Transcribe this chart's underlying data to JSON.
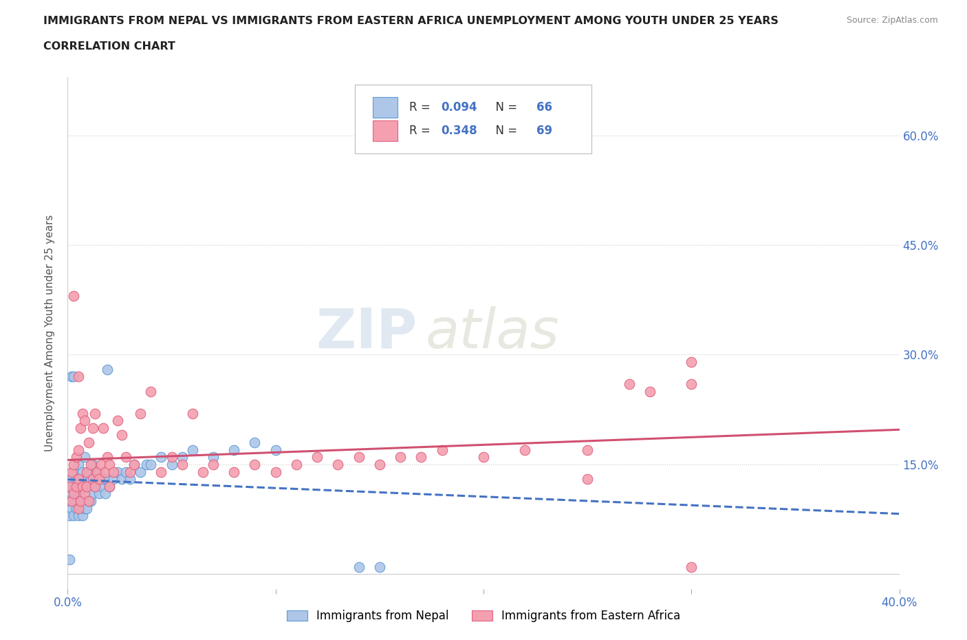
{
  "title_line1": "IMMIGRANTS FROM NEPAL VS IMMIGRANTS FROM EASTERN AFRICA UNEMPLOYMENT AMONG YOUTH UNDER 25 YEARS",
  "title_line2": "CORRELATION CHART",
  "source_text": "Source: ZipAtlas.com",
  "ylabel": "Unemployment Among Youth under 25 years",
  "xlim": [
    0.0,
    0.4
  ],
  "ylim": [
    -0.02,
    0.68
  ],
  "xtick_pos": [
    0.0,
    0.1,
    0.2,
    0.3,
    0.4
  ],
  "xtick_labels": [
    "0.0%",
    "",
    "",
    "",
    "40.0%"
  ],
  "ytick_positions": [
    0.0,
    0.15,
    0.3,
    0.45,
    0.6
  ],
  "ytick_labels": [
    "",
    "15.0%",
    "30.0%",
    "45.0%",
    "60.0%"
  ],
  "nepal_color": "#aec6e8",
  "nepal_edge_color": "#5b9bd5",
  "eastern_africa_color": "#f4a0b0",
  "eastern_africa_edge_color": "#e06080",
  "nepal_R": 0.094,
  "nepal_N": 66,
  "eastern_africa_R": 0.348,
  "eastern_africa_N": 69,
  "nepal_trend_color": "#4472c4",
  "eastern_africa_trend_color": "#d05070",
  "watermark_zip": "ZIP",
  "watermark_atlas": "atlas",
  "background_color": "#ffffff",
  "nepal_x": [
    0.001,
    0.001,
    0.001,
    0.002,
    0.002,
    0.002,
    0.003,
    0.003,
    0.003,
    0.003,
    0.004,
    0.004,
    0.004,
    0.005,
    0.005,
    0.005,
    0.005,
    0.006,
    0.006,
    0.006,
    0.007,
    0.007,
    0.007,
    0.008,
    0.008,
    0.008,
    0.009,
    0.009,
    0.01,
    0.01,
    0.011,
    0.011,
    0.012,
    0.012,
    0.013,
    0.014,
    0.015,
    0.015,
    0.016,
    0.017,
    0.018,
    0.019,
    0.02,
    0.022,
    0.024,
    0.026,
    0.028,
    0.03,
    0.032,
    0.035,
    0.038,
    0.04,
    0.045,
    0.05,
    0.055,
    0.06,
    0.07,
    0.08,
    0.09,
    0.1,
    0.002,
    0.003,
    0.14,
    0.15,
    0.001,
    0.019
  ],
  "nepal_y": [
    0.08,
    0.1,
    0.12,
    0.09,
    0.11,
    0.13,
    0.08,
    0.1,
    0.12,
    0.14,
    0.09,
    0.11,
    0.13,
    0.08,
    0.1,
    0.12,
    0.15,
    0.09,
    0.11,
    0.13,
    0.08,
    0.1,
    0.14,
    0.09,
    0.12,
    0.16,
    0.09,
    0.13,
    0.1,
    0.14,
    0.1,
    0.13,
    0.11,
    0.15,
    0.12,
    0.13,
    0.11,
    0.14,
    0.12,
    0.13,
    0.11,
    0.13,
    0.12,
    0.13,
    0.14,
    0.13,
    0.14,
    0.13,
    0.15,
    0.14,
    0.15,
    0.15,
    0.16,
    0.15,
    0.16,
    0.17,
    0.16,
    0.17,
    0.18,
    0.17,
    0.27,
    0.27,
    0.01,
    0.01,
    0.02,
    0.28
  ],
  "eastern_africa_x": [
    0.001,
    0.002,
    0.002,
    0.003,
    0.003,
    0.004,
    0.004,
    0.005,
    0.005,
    0.005,
    0.006,
    0.006,
    0.007,
    0.007,
    0.008,
    0.008,
    0.009,
    0.009,
    0.01,
    0.01,
    0.011,
    0.012,
    0.012,
    0.013,
    0.013,
    0.014,
    0.015,
    0.016,
    0.017,
    0.018,
    0.019,
    0.02,
    0.022,
    0.024,
    0.026,
    0.028,
    0.03,
    0.032,
    0.035,
    0.04,
    0.045,
    0.05,
    0.055,
    0.06,
    0.065,
    0.07,
    0.08,
    0.09,
    0.1,
    0.11,
    0.12,
    0.13,
    0.14,
    0.15,
    0.16,
    0.17,
    0.18,
    0.2,
    0.22,
    0.25,
    0.003,
    0.27,
    0.005,
    0.3,
    0.28,
    0.25,
    0.3,
    0.02,
    0.3
  ],
  "eastern_africa_y": [
    0.12,
    0.1,
    0.14,
    0.11,
    0.15,
    0.12,
    0.16,
    0.09,
    0.13,
    0.17,
    0.1,
    0.2,
    0.12,
    0.22,
    0.11,
    0.21,
    0.12,
    0.14,
    0.1,
    0.18,
    0.15,
    0.13,
    0.2,
    0.12,
    0.22,
    0.14,
    0.13,
    0.15,
    0.2,
    0.14,
    0.16,
    0.15,
    0.14,
    0.21,
    0.19,
    0.16,
    0.14,
    0.15,
    0.22,
    0.25,
    0.14,
    0.16,
    0.15,
    0.22,
    0.14,
    0.15,
    0.14,
    0.15,
    0.14,
    0.15,
    0.16,
    0.15,
    0.16,
    0.15,
    0.16,
    0.16,
    0.17,
    0.16,
    0.17,
    0.17,
    0.38,
    0.26,
    0.27,
    0.26,
    0.25,
    0.13,
    0.29,
    0.12,
    0.01
  ]
}
